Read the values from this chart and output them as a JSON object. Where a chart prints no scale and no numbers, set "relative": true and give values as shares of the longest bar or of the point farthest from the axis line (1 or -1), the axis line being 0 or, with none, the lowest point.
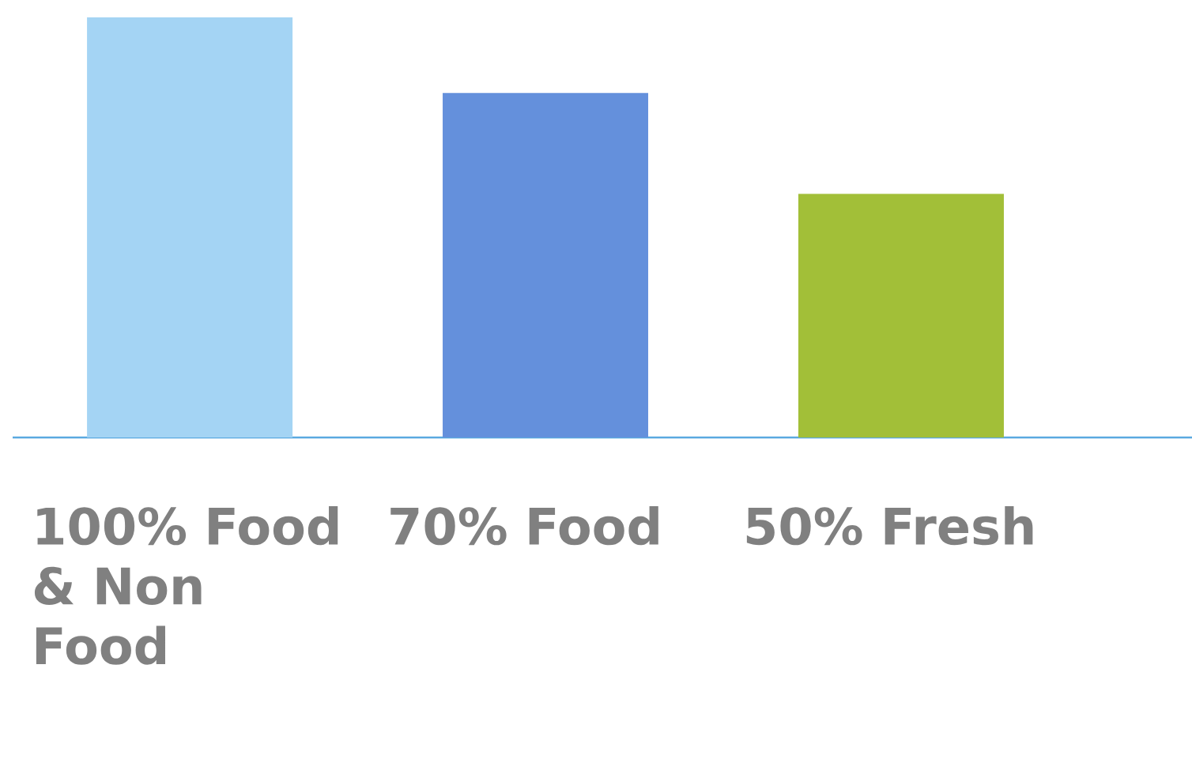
{
  "chart_data": {
    "type": "bar",
    "relative": true,
    "categories": [
      "100% Food & Non Food",
      "70% Food",
      "50% Fresh"
    ],
    "values": [
      1,
      0.82,
      0.58
    ],
    "colors": [
      "#a4d4f4",
      "#6490dc",
      "#a2bf38"
    ]
  }
}
